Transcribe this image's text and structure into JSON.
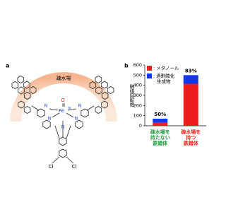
{
  "panel_labels": [
    "a",
    "b"
  ],
  "diagram": {
    "region_label": "疎水場",
    "metal": "Fe",
    "oxidation_state": "IV",
    "oxo": "O",
    "nitrogen": "N",
    "chlorine": "Cl"
  },
  "chart_data": {
    "type": "bar",
    "stacked": true,
    "y_label": "触媒回転数",
    "categories": [
      "疎水場を\n持たない\n鉄錯体",
      "疎水場を\n持つ\n鉄錯体"
    ],
    "category_colors": [
      "#1f9a3c",
      "#e8231c"
    ],
    "series": [
      {
        "name": ": メタノール",
        "color": "#ee1c1c",
        "values": [
          35,
          415
        ]
      },
      {
        "name": ": 過剰酸化\n生成物",
        "color": "#1437e6",
        "values": [
          35,
          85
        ]
      }
    ],
    "annotations": [
      "50%",
      "83%"
    ],
    "ylim": [
      0,
      600
    ],
    "yticks": [
      0,
      100,
      200,
      300,
      400,
      500,
      600
    ]
  }
}
